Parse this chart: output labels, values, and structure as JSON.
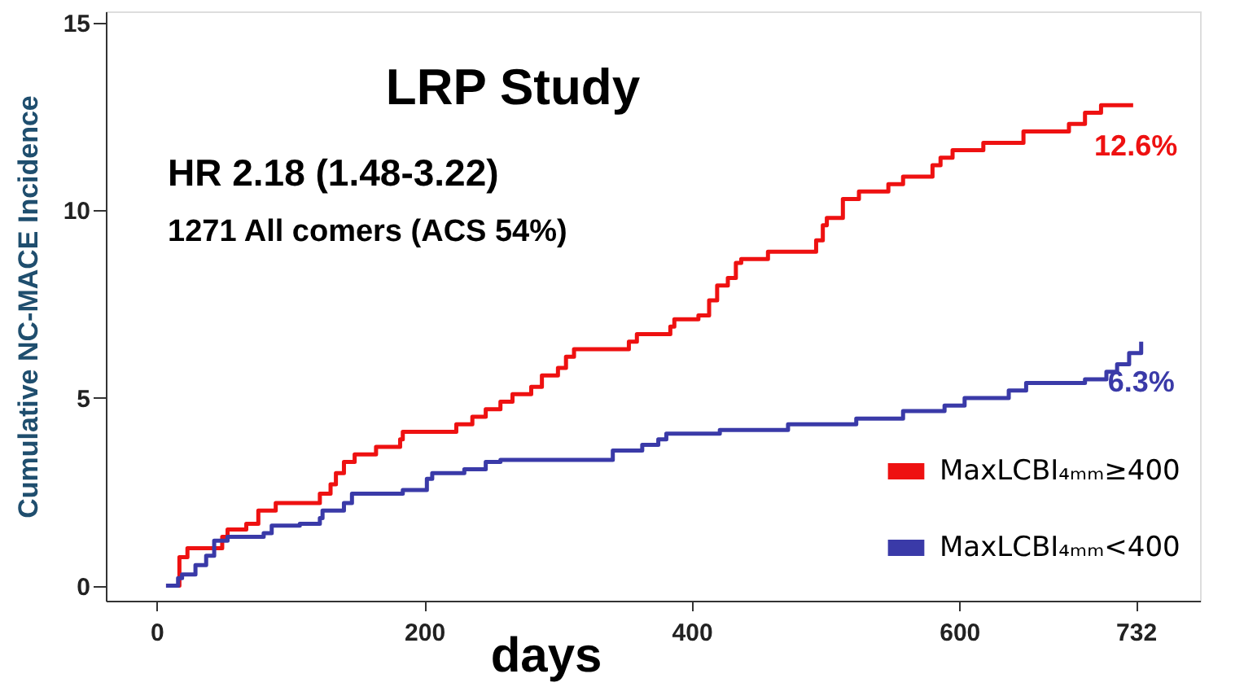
{
  "chart_data": {
    "type": "step",
    "title": "LRP Study",
    "xlabel": "days",
    "ylabel": "Cumulative NC-MACE Incidence",
    "xlim": [
      -38,
      780
    ],
    "xticks": [
      0,
      200,
      400,
      600,
      732
    ],
    "ylim": [
      -0.4,
      15.3
    ],
    "yticks": [
      0,
      5,
      10,
      15
    ],
    "grid": false,
    "legend": "bottom right",
    "marker": "none",
    "line_style": "solid",
    "annotations": [
      "HR 2.18 (1.48-3.22)",
      "1271 All comers (ACS 54%)",
      {
        "text": "12.6%",
        "x": 732,
        "y": 12.6
      },
      {
        "text": "6.3%",
        "x": 736,
        "y": 6.3
      }
    ],
    "series": [
      {
        "name": "MaxLCBI₄ₘₘ≥400",
        "color": "#ee1111",
        "x": [
          7,
          17,
          23,
          49,
          53,
          67,
          76,
          89,
          122,
          130,
          134,
          140,
          148,
          164,
          182,
          184,
          224,
          236,
          246,
          257,
          266,
          280,
          288,
          300,
          306,
          312,
          353,
          359,
          384,
          387,
          405,
          413,
          419,
          427,
          433,
          437,
          457,
          493,
          498,
          501,
          513,
          525,
          547,
          558,
          580,
          586,
          595,
          618,
          648,
          682,
          694,
          706,
          730
        ],
        "values": [
          0,
          0.76,
          1.0,
          1.3,
          1.5,
          1.65,
          2.0,
          2.2,
          2.45,
          2.7,
          3.0,
          3.3,
          3.5,
          3.7,
          3.9,
          4.1,
          4.3,
          4.5,
          4.7,
          4.9,
          5.1,
          5.3,
          5.6,
          5.8,
          6.1,
          6.3,
          6.5,
          6.7,
          6.9,
          7.1,
          7.2,
          7.6,
          8.0,
          8.2,
          8.6,
          8.7,
          8.9,
          9.2,
          9.6,
          9.8,
          10.3,
          10.5,
          10.7,
          10.9,
          11.2,
          11.4,
          11.6,
          11.8,
          12.1,
          12.3,
          12.6,
          12.8,
          12.8
        ]
      },
      {
        "name": "MaxLCBI₄ₘₘ<400",
        "color": "#3a3aa8",
        "x": [
          7,
          16,
          19,
          29,
          37,
          43,
          53,
          80,
          86,
          107,
          122,
          124,
          140,
          146,
          184,
          202,
          206,
          230,
          246,
          257,
          341,
          363,
          375,
          381,
          421,
          472,
          523,
          558,
          589,
          604,
          637,
          650,
          694,
          710,
          718,
          727,
          736
        ],
        "values": [
          0,
          0.2,
          0.3,
          0.55,
          0.8,
          1.2,
          1.3,
          1.4,
          1.6,
          1.65,
          1.8,
          2.0,
          2.2,
          2.45,
          2.55,
          2.85,
          3.0,
          3.1,
          3.3,
          3.35,
          3.6,
          3.75,
          3.9,
          4.05,
          4.15,
          4.3,
          4.45,
          4.65,
          4.8,
          5.0,
          5.2,
          5.4,
          5.5,
          5.7,
          5.9,
          6.2,
          6.5
        ]
      }
    ]
  }
}
